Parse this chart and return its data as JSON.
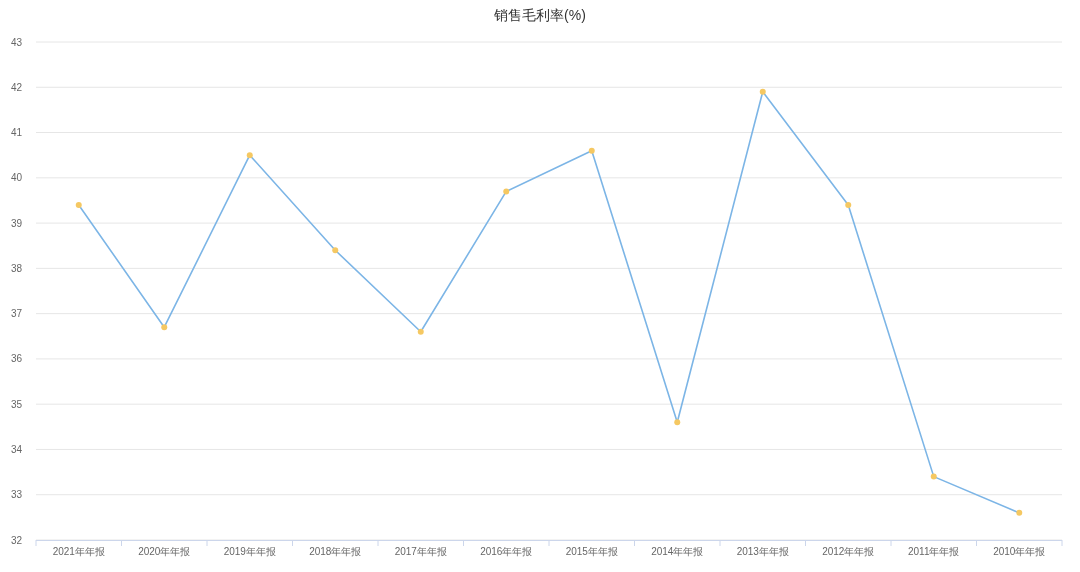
{
  "chart_data": {
    "type": "line",
    "title": "销售毛利率(%)",
    "categories": [
      "2021年年报",
      "2020年年报",
      "2019年年报",
      "2018年年报",
      "2017年年报",
      "2016年年报",
      "2015年年报",
      "2014年年报",
      "2013年年报",
      "2012年年报",
      "2011年年报",
      "2010年年报"
    ],
    "series": [
      {
        "color": "#7cb5e6",
        "colors": [
          "#f5c862",
          "#f5c862",
          "#f5c862",
          "#f5c862",
          "#f5c862",
          "#f5c862",
          "#f5c862",
          "#f5c862",
          "#f5c862",
          "#f5c862",
          "#f5c862",
          "#f5c862"
        ],
        "values": [
          39.4,
          36.7,
          40.5,
          38.4,
          36.6,
          39.7,
          40.6,
          34.6,
          41.9,
          39.4,
          33.4,
          32.6
        ]
      }
    ],
    "ylim": [
      32,
      43
    ],
    "yticks": [
      32,
      33,
      34,
      35,
      36,
      37,
      38,
      39,
      40,
      41,
      42,
      43
    ],
    "grid": "y",
    "marker": "circle"
  }
}
